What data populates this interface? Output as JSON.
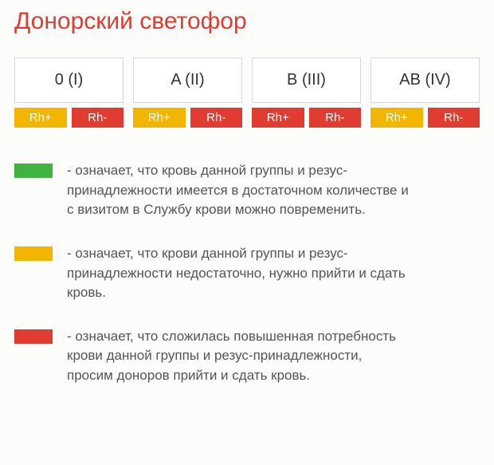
{
  "title": "Донорский светофор",
  "title_color": "#e03c31",
  "colors": {
    "green": "#3fb33f",
    "amber": "#f2b500",
    "red": "#e03c31"
  },
  "groups": [
    {
      "label": "0 (I)",
      "rh": [
        {
          "label": "Rh+",
          "color": "#f2b500"
        },
        {
          "label": "Rh-",
          "color": "#e03c31"
        }
      ]
    },
    {
      "label": "A (II)",
      "rh": [
        {
          "label": "Rh+",
          "color": "#f2b500"
        },
        {
          "label": "Rh-",
          "color": "#e03c31"
        }
      ]
    },
    {
      "label": "B (III)",
      "rh": [
        {
          "label": "Rh+",
          "color": "#e03c31"
        },
        {
          "label": "Rh-",
          "color": "#e03c31"
        }
      ]
    },
    {
      "label": "AB (IV)",
      "rh": [
        {
          "label": "Rh+",
          "color": "#f2b500"
        },
        {
          "label": "Rh-",
          "color": "#e03c31"
        }
      ]
    }
  ],
  "legend": [
    {
      "swatch_color": "#3fb33f",
      "text": "- означает, что кровь данной группы и резус-принадлежности имеется в достаточном количестве и c визитом в Службу крови можно повременить."
    },
    {
      "swatch_color": "#f2b500",
      "text": "- означает, что крови данной группы и резус-принадлежности недостаточно, нужно прийти и сдать кровь."
    },
    {
      "swatch_color": "#e03c31",
      "text": "- означает, что сложилась повышенная потребность крови данной группы и резус-принадлежности, просим доноров прийти и сдать кровь."
    }
  ]
}
